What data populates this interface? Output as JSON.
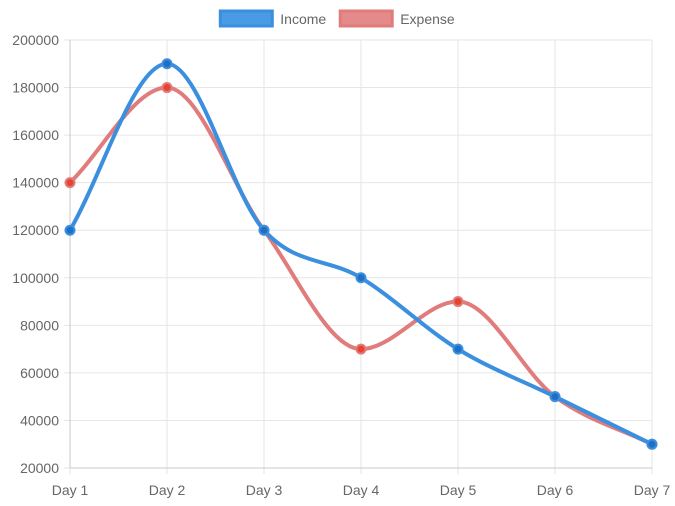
{
  "chart_data": {
    "type": "line",
    "categories": [
      "Day 1",
      "Day 2",
      "Day 3",
      "Day 4",
      "Day 5",
      "Day 6",
      "Day 7"
    ],
    "series": [
      {
        "name": "Income",
        "values": [
          120000,
          190000,
          120000,
          100000,
          70000,
          50000,
          30000
        ],
        "color": "#3b8fdf",
        "fill_color": "#4a9be6",
        "point_color": "#1f6fc4"
      },
      {
        "name": "Expense",
        "values": [
          140000,
          180000,
          120000,
          70000,
          90000,
          50000,
          30000
        ],
        "color": "#e07c7c",
        "fill_color": "#e48a8a",
        "point_color": "#e8432f"
      }
    ],
    "ylim": [
      20000,
      200000
    ],
    "y_ticks": [
      "200000",
      "180000",
      "160000",
      "140000",
      "120000",
      "100000",
      "80000",
      "60000",
      "40000",
      "20000"
    ],
    "ystep": 20000,
    "grid": true,
    "legend": "top-center",
    "smooth": true
  }
}
